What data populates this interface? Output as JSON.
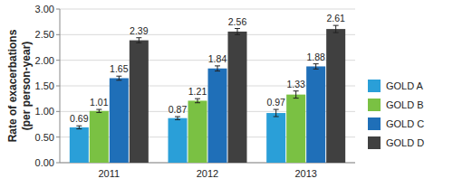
{
  "chart_data": {
    "type": "bar",
    "y_label": [
      "Rate of exacerbations",
      "(per person-year)"
    ],
    "categories": [
      "2011",
      "2012",
      "2013"
    ],
    "series": [
      {
        "name": "GOLD A",
        "color": "#2a9fd8",
        "values": [
          0.69,
          0.87,
          0.97
        ],
        "errors": [
          0.03,
          0.03,
          0.07
        ]
      },
      {
        "name": "GOLD B",
        "color": "#7ac143",
        "values": [
          1.01,
          1.21,
          1.33
        ],
        "errors": [
          0.03,
          0.04,
          0.07
        ]
      },
      {
        "name": "GOLD C",
        "color": "#1f6fb8",
        "values": [
          1.65,
          1.84,
          1.88
        ],
        "errors": [
          0.04,
          0.05,
          0.05
        ]
      },
      {
        "name": "GOLD D",
        "color": "#404040",
        "values": [
          2.39,
          2.56,
          2.61
        ],
        "errors": [
          0.05,
          0.06,
          0.07
        ]
      }
    ],
    "ylim": [
      0,
      3
    ],
    "yticks": [
      {
        "value": 0,
        "label": "0.00"
      },
      {
        "value": 0.5,
        "label": "0.50"
      },
      {
        "value": 1,
        "label": "1.00"
      },
      {
        "value": 1.5,
        "label": "1.50"
      },
      {
        "value": 2,
        "label": "2.00"
      },
      {
        "value": 2.5,
        "label": "2.50"
      },
      {
        "value": 3,
        "label": "3.00"
      }
    ],
    "grid": true,
    "legend": "right",
    "data_labels": true
  }
}
